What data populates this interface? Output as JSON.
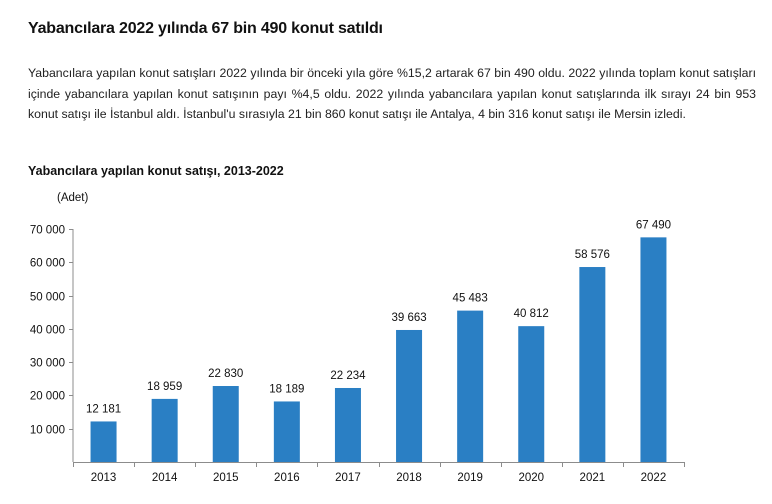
{
  "article": {
    "headline": "Yabancılara 2022 yılında 67 bin 490 konut satıldı",
    "paragraph": "Yabancılara yapılan konut satışları 2022 yılında bir önceki yıla göre %15,2 artarak 67 bin 490 oldu. 2022 yılında toplam konut satışları içinde yabancılara yapılan konut satışının payı %4,5 oldu. 2022 yılında yabancılara yapılan konut satışlarında ilk sırayı 24 bin 953 konut satışı ile İstanbul aldı. İstanbul'u sırasıyla 21 bin 860 konut satışı ile Antalya, 4 bin 316 konut satışı ile Mersin izledi."
  },
  "chart_data": {
    "type": "bar",
    "title": "Yabancılara yapılan konut satışı, 2013-2022",
    "unit_label": "(Adet)",
    "xlabel": "",
    "ylabel": "(Adet)",
    "categories": [
      "2013",
      "2014",
      "2015",
      "2016",
      "2017",
      "2018",
      "2019",
      "2020",
      "2021",
      "2022"
    ],
    "values": [
      12181,
      18959,
      22830,
      18189,
      22234,
      39663,
      45483,
      40812,
      58576,
      67490
    ],
    "value_labels": [
      "12 181",
      "18 959",
      "22 830",
      "18 189",
      "22 234",
      "39 663",
      "45 483",
      "40 812",
      "58 576",
      "67 490"
    ],
    "ylim": [
      0,
      70000
    ],
    "yticks": [
      10000,
      20000,
      30000,
      40000,
      50000,
      60000,
      70000
    ],
    "ytick_labels": [
      "10 000",
      "20 000",
      "30 000",
      "40 000",
      "50 000",
      "60 000",
      "70 000"
    ],
    "grid": false,
    "legend": null,
    "bar_color": "#2a7fc4",
    "axis_color": "#8c8c8c"
  }
}
